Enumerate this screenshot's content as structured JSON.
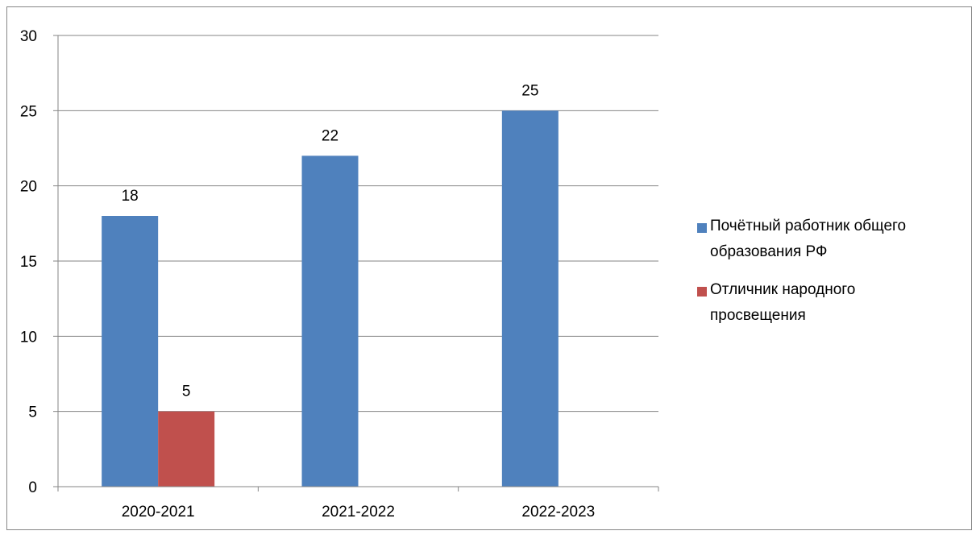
{
  "chart_data": {
    "type": "bar",
    "title": "",
    "xlabel": "",
    "ylabel": "",
    "categories": [
      "2020-2021",
      "2021-2022",
      "2022-2023"
    ],
    "series": [
      {
        "name": "Почётный работник общего образования РФ",
        "values": [
          18,
          22,
          25
        ],
        "color": "#4F81BD"
      },
      {
        "name": "Отличник народного просвещения",
        "values": [
          5,
          null,
          null
        ],
        "color": "#C0504D"
      }
    ],
    "ylim": [
      0,
      30
    ],
    "yticks": [
      0,
      5,
      10,
      15,
      20,
      25,
      30
    ],
    "grid": true,
    "legend_position": "right",
    "data_labels": true
  }
}
